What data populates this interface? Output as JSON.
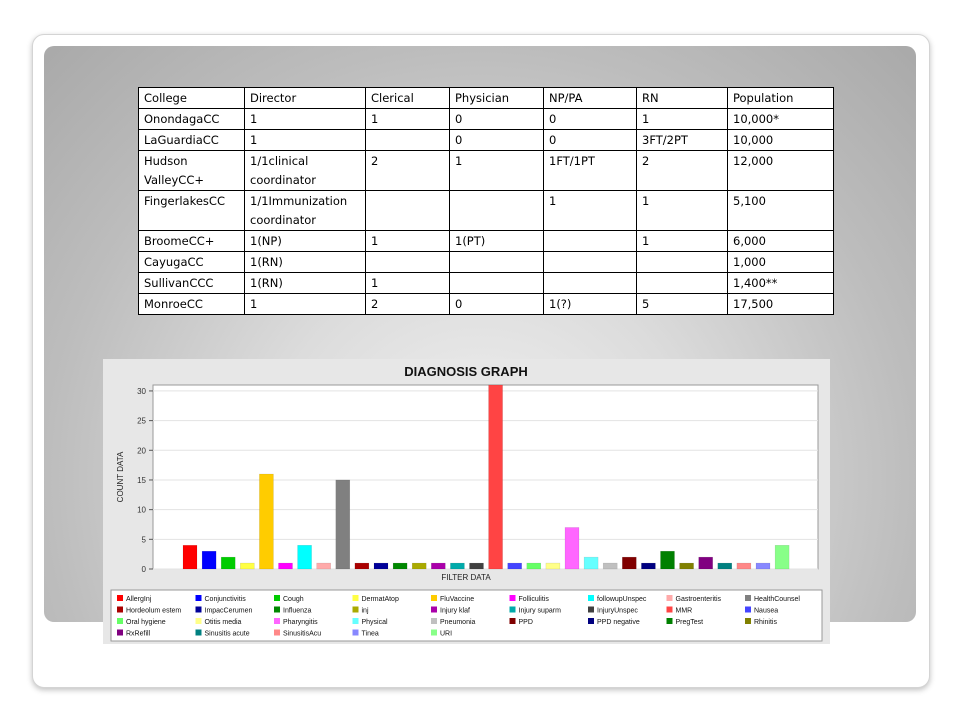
{
  "table": {
    "headers": [
      "College",
      "Director",
      "Clerical",
      "Physician",
      "NP/PA",
      "RN",
      "Population"
    ],
    "rows": [
      [
        "OnondagaCC",
        "1",
        "1",
        "0",
        "0",
        "1",
        "10,000*"
      ],
      [
        "LaGuardiaCC",
        "1",
        "",
        "0",
        "0",
        "3FT/2PT",
        "10,000"
      ],
      [
        "Hudson ValleyCC+",
        "1/1clinical coordinator",
        "2",
        "1",
        "1FT/1PT",
        "2",
        "12,000"
      ],
      [
        "FingerlakesCC",
        "1/1Immunization coordinator",
        "",
        "",
        "1",
        "1",
        "5,100"
      ],
      [
        "BroomeCC+",
        "1(NP)",
        "1",
        "1(PT)",
        "",
        "1",
        "6,000"
      ],
      [
        "CayugaCC",
        "1(RN)",
        "",
        "",
        "",
        "",
        "1,000"
      ],
      [
        "SullivanCCC",
        "1(RN)",
        "1",
        "",
        "",
        "",
        "1,400**"
      ],
      [
        "MonroeCC",
        "1",
        "2",
        "0",
        "1(?)",
        "5",
        "17,500"
      ]
    ]
  },
  "chart_data": {
    "type": "bar",
    "title": "DIAGNOSIS GRAPH",
    "xlabel": "FILTER DATA",
    "ylabel": "COUNT DATA",
    "ylim": [
      0,
      31
    ],
    "yticks": [
      0,
      5,
      10,
      15,
      20,
      25,
      30
    ],
    "grid": true,
    "legend_position": "bottom",
    "categories": [
      "AllergInj",
      "Conjunctivitis",
      "Cough",
      "DermatAtop",
      "FluVaccine",
      "Folliculitis",
      "followupUnspec",
      "Gastroenteritis",
      "HealthCounsel",
      "Hordeolum estem",
      "ImpacCerumen",
      "Influenza",
      "inj",
      "Injury klaf",
      "Injury suparm",
      "InjuryUnspec",
      "MMR",
      "Nausea",
      "Oral hygiene",
      "Otitis media",
      "Pharyngitis",
      "Physical",
      "Pneumonia",
      "PPD",
      "PPD negative",
      "PregTest",
      "Rhinitis",
      "RxRefill",
      "Sinusitis acute",
      "SinusitisAcu",
      "Tinea",
      "URI"
    ],
    "values": [
      4,
      3,
      2,
      1,
      16,
      1,
      4,
      1,
      15,
      1,
      1,
      1,
      1,
      1,
      1,
      1,
      31,
      1,
      1,
      1,
      7,
      2,
      1,
      2,
      1,
      3,
      1,
      2,
      1,
      1,
      1,
      4
    ],
    "colors": [
      "#ff0000",
      "#0000ff",
      "#00cc00",
      "#ffff44",
      "#ffcc00",
      "#ff00ff",
      "#00ffff",
      "#ffaaaa",
      "#808080",
      "#aa0000",
      "#000099",
      "#008800",
      "#aaaa00",
      "#aa00aa",
      "#00aaaa",
      "#404040",
      "#ff4444",
      "#4444ff",
      "#66ff66",
      "#ffff88",
      "#ff66ff",
      "#66ffff",
      "#c0c0c0",
      "#800000",
      "#000080",
      "#008000",
      "#808000",
      "#800080",
      "#008080",
      "#ff8888",
      "#8888ff",
      "#88ff88"
    ]
  }
}
